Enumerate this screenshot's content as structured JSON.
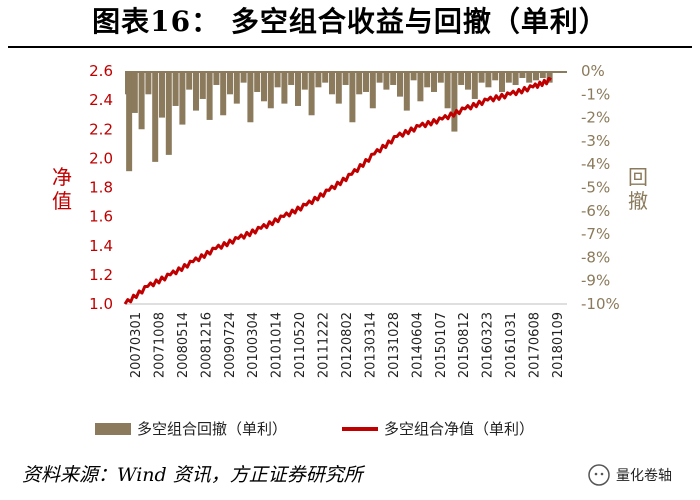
{
  "title": "图表16：        多空组合收益与回撤（单利）",
  "source": "资料来源：Wind 资讯，方正证券研究所",
  "logo_text": "量化卷轴",
  "colors": {
    "nav_line": "#C00000",
    "drawdown_bar": "#8B7A5B",
    "left_axis": "#C00000",
    "right_axis": "#8B7A5B"
  },
  "chart_data": {
    "type": "line+bar",
    "x_tick_labels": [
      "20070301",
      "20071008",
      "20080514",
      "20081216",
      "20090724",
      "20100304",
      "20101014",
      "20110520",
      "20111222",
      "20120802",
      "20130314",
      "20131028",
      "20140604",
      "20150107",
      "20150812",
      "20160323",
      "20161031",
      "20170608",
      "20180109"
    ],
    "left_axis": {
      "label": "净值",
      "ylim": [
        1.0,
        2.6
      ],
      "ticks": [
        "1.0",
        "1.2",
        "1.4",
        "1.6",
        "1.8",
        "2.0",
        "2.2",
        "2.4",
        "2.6"
      ]
    },
    "right_axis": {
      "label": "回撤",
      "ylim": [
        -10,
        0
      ],
      "ticks": [
        "0%",
        "-1%",
        "-2%",
        "-3%",
        "-4%",
        "-5%",
        "-6%",
        "-7%",
        "-8%",
        "-9%",
        "-10%"
      ]
    },
    "legend": {
      "placement": "bottom",
      "entries": [
        "多空组合回撤（单利）",
        "多空组合净值（单利）"
      ]
    },
    "series": [
      {
        "name": "多空组合净值（单利）",
        "kind": "line",
        "axis": "left",
        "t": [
          0,
          1,
          2,
          3,
          4,
          5,
          6,
          7,
          8,
          9,
          10,
          11,
          12,
          13,
          14,
          15,
          16,
          17,
          18,
          18.8
        ],
        "values": [
          1.0,
          1.12,
          1.2,
          1.29,
          1.38,
          1.45,
          1.52,
          1.6,
          1.68,
          1.78,
          1.89,
          2.03,
          2.15,
          2.22,
          2.27,
          2.34,
          2.4,
          2.44,
          2.49,
          2.54
        ]
      },
      {
        "name": "多空组合回撤（单利）",
        "kind": "bar",
        "axis": "right",
        "t": [
          0,
          0.05,
          0.3,
          0.6,
          0.9,
          1.2,
          1.5,
          1.8,
          2.1,
          2.4,
          2.7,
          3.0,
          3.3,
          3.6,
          3.9,
          4.2,
          4.5,
          4.8,
          5.1,
          5.4,
          5.7,
          6.0,
          6.3,
          6.6,
          6.9,
          7.2,
          7.5,
          7.8,
          8.1,
          8.4,
          8.7,
          9.0,
          9.3,
          9.6,
          9.9,
          10.2,
          10.5,
          10.8,
          11.1,
          11.4,
          11.7,
          12.0,
          12.3,
          12.6,
          12.9,
          13.2,
          13.5,
          13.8,
          14.1,
          14.4,
          14.7,
          15.0,
          15.3,
          15.6,
          15.9,
          16.2,
          16.5,
          16.8,
          17.1,
          17.4,
          17.7,
          18.0,
          18.3,
          18.6
        ],
        "values": [
          -1.0,
          -4.3,
          -1.8,
          -2.5,
          -1.0,
          -3.9,
          -2.0,
          -3.6,
          -1.5,
          -2.3,
          -0.8,
          -1.7,
          -1.2,
          -2.1,
          -0.6,
          -1.9,
          -1.0,
          -1.4,
          -0.5,
          -2.2,
          -0.9,
          -1.3,
          -1.6,
          -0.7,
          -1.4,
          -0.6,
          -1.5,
          -0.8,
          -1.9,
          -0.7,
          -0.5,
          -1.0,
          -1.4,
          -0.6,
          -2.2,
          -1.0,
          -0.9,
          -1.6,
          -0.5,
          -0.8,
          -0.6,
          -1.1,
          -1.7,
          -0.4,
          -1.3,
          -0.7,
          -0.9,
          -0.5,
          -1.6,
          -2.6,
          -0.6,
          -0.8,
          -1.2,
          -0.5,
          -0.7,
          -0.4,
          -0.9,
          -0.5,
          -0.6,
          -0.3,
          -0.5,
          -0.4,
          -0.3,
          -0.5
        ]
      }
    ]
  }
}
